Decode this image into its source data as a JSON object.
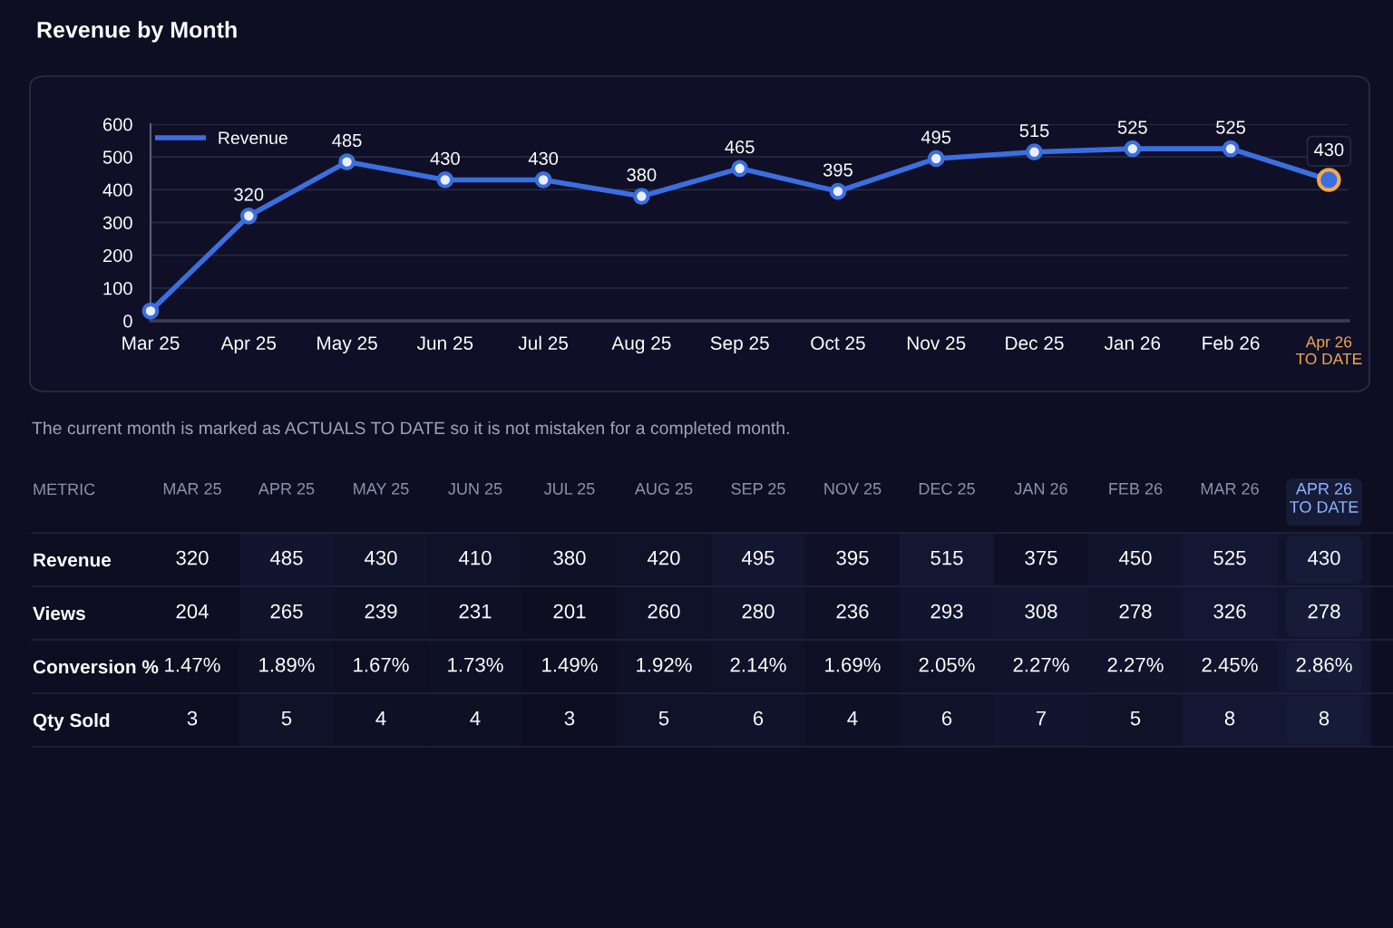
{
  "chart_data": [
    {
      "type": "line",
      "title": "Revenue by Month",
      "categories": [
        "Mar 25",
        "Apr 25",
        "May 25",
        "Jun 25",
        "Jul 25",
        "Aug 25",
        "Sep 25",
        "Oct 25",
        "Nov 25",
        "Dec 25",
        "Jan 26",
        "Feb 26",
        "Apr 26\nTO DATE"
      ],
      "series": [
        {
          "name": "Revenue",
          "color": "#3b6fe0",
          "values": [
            30,
            320,
            485,
            430,
            430,
            380,
            465,
            395,
            495,
            515,
            525,
            525,
            430
          ],
          "value_labels": [
            null,
            "320",
            "485",
            "430",
            "430",
            "380",
            "465",
            "395",
            "495",
            "515",
            "525",
            "525",
            "430"
          ]
        }
      ],
      "ylim": [
        0,
        600
      ],
      "yticks": [
        0,
        100,
        200,
        300,
        400,
        500,
        600
      ],
      "grid": "y",
      "legend": "top left",
      "marker": "circle",
      "line_style": "solid",
      "annotations": [
        "The current month is marked as ACTUALS TO DATE so it is not mistaken for a completed month."
      ]
    },
    {
      "type": "heatmap",
      "ylabel": "METRIC",
      "categories": [
        "MAR 25",
        "APR 25",
        "MAY 25",
        "JUN 25",
        "JUL 25",
        "AUG 25",
        "SEP 25",
        "NOV 25",
        "DEC 25",
        "JAN 26",
        "FEB 26",
        "MAR 26",
        "APR 26\nTO DATE"
      ],
      "y_categories": [
        "Revenue",
        "Views",
        "Conversion %",
        "Qty Sold"
      ],
      "cells": [
        [
          320,
          485,
          430,
          410,
          380,
          420,
          495,
          395,
          515,
          375,
          450,
          525,
          430
        ],
        [
          204,
          265,
          239,
          231,
          201,
          260,
          280,
          236,
          293,
          308,
          278,
          326,
          278
        ],
        [
          1.47,
          1.89,
          1.67,
          1.73,
          1.49,
          1.92,
          2.14,
          1.69,
          2.05,
          2.27,
          2.27,
          2.45,
          2.86
        ],
        [
          3,
          5,
          4,
          4,
          3,
          5,
          6,
          4,
          6,
          7,
          5,
          8,
          8
        ]
      ],
      "cell_labels": [
        [
          "320",
          "485",
          "430",
          "410",
          "380",
          "420",
          "495",
          "395",
          "515",
          "375",
          "450",
          "525",
          "430"
        ],
        [
          "204",
          "265",
          "239",
          "231",
          "201",
          "260",
          "280",
          "236",
          "293",
          "308",
          "278",
          "326",
          "278"
        ],
        [
          "1.47%",
          "1.89%",
          "1.67%",
          "1.73%",
          "1.49%",
          "1.92%",
          "2.14%",
          "1.69%",
          "2.05%",
          "2.27%",
          "2.27%",
          "2.45%",
          "2.86%"
        ],
        [
          "3",
          "5",
          "4",
          "4",
          "3",
          "5",
          "6",
          "4",
          "6",
          "7",
          "5",
          "8",
          "8"
        ]
      ]
    }
  ]
}
